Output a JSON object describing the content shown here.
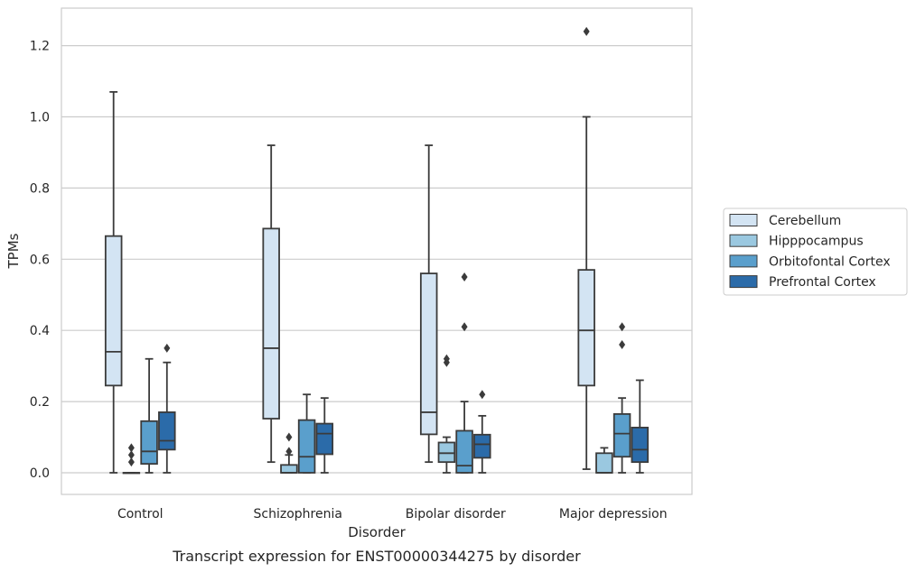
{
  "caption": "Transcript expression for ENST00000344275 by disorder",
  "chart_data": {
    "type": "boxplot",
    "xlabel": "Disorder",
    "ylabel": "TPMs",
    "ylim": [
      -0.06,
      1.3
    ],
    "yticks": [
      "0.0",
      "0.2",
      "0.4",
      "0.6",
      "0.8",
      "1.0",
      "1.2"
    ],
    "grid": "horizontal",
    "legend_position": "right",
    "categories": [
      "Control",
      "Schizophrenia",
      "Bipolar disorder",
      "Major depression"
    ],
    "series": [
      {
        "name": "Cerebellum",
        "color": "#d3e4f3",
        "boxes": [
          {
            "whislo": 0.0,
            "q1": 0.245,
            "med": 0.34,
            "q3": 0.665,
            "whishi": 1.07,
            "fliers": []
          },
          {
            "whislo": 0.03,
            "q1": 0.152,
            "med": 0.35,
            "q3": 0.686,
            "whishi": 0.92,
            "fliers": []
          },
          {
            "whislo": 0.03,
            "q1": 0.108,
            "med": 0.17,
            "q3": 0.56,
            "whishi": 0.92,
            "fliers": []
          },
          {
            "whislo": 0.01,
            "q1": 0.245,
            "med": 0.4,
            "q3": 0.57,
            "whishi": 1.0,
            "fliers": [
              1.24
            ]
          }
        ]
      },
      {
        "name": "Hipppocampus",
        "color": "#9ac8e0",
        "boxes": [
          {
            "whislo": 0.0,
            "q1": 0.0,
            "med": 0.0,
            "q3": 0.0,
            "whishi": 0.0,
            "fliers": [
              0.03,
              0.05,
              0.07
            ]
          },
          {
            "whislo": 0.0,
            "q1": 0.0,
            "med": 0.0,
            "q3": 0.022,
            "whishi": 0.05,
            "fliers": [
              0.06,
              0.1
            ]
          },
          {
            "whislo": 0.0,
            "q1": 0.03,
            "med": 0.055,
            "q3": 0.085,
            "whishi": 0.1,
            "fliers": [
              0.31,
              0.32
            ]
          },
          {
            "whislo": 0.0,
            "q1": 0.0,
            "med": 0.0,
            "q3": 0.055,
            "whishi": 0.07,
            "fliers": []
          }
        ]
      },
      {
        "name": "Orbitofontal Cortex",
        "color": "#5a9fcc",
        "boxes": [
          {
            "whislo": 0.0,
            "q1": 0.025,
            "med": 0.06,
            "q3": 0.145,
            "whishi": 0.32,
            "fliers": []
          },
          {
            "whislo": 0.0,
            "q1": 0.0,
            "med": 0.045,
            "q3": 0.148,
            "whishi": 0.22,
            "fliers": []
          },
          {
            "whislo": 0.0,
            "q1": 0.0,
            "med": 0.02,
            "q3": 0.118,
            "whishi": 0.2,
            "fliers": [
              0.41,
              0.55
            ]
          },
          {
            "whislo": 0.0,
            "q1": 0.045,
            "med": 0.11,
            "q3": 0.165,
            "whishi": 0.21,
            "fliers": [
              0.36,
              0.41
            ]
          }
        ]
      },
      {
        "name": "Prefrontal Cortex",
        "color": "#2b6ba9",
        "boxes": [
          {
            "whislo": 0.0,
            "q1": 0.065,
            "med": 0.09,
            "q3": 0.17,
            "whishi": 0.31,
            "fliers": [
              0.35
            ]
          },
          {
            "whislo": 0.0,
            "q1": 0.052,
            "med": 0.11,
            "q3": 0.138,
            "whishi": 0.21,
            "fliers": []
          },
          {
            "whislo": 0.0,
            "q1": 0.042,
            "med": 0.08,
            "q3": 0.107,
            "whishi": 0.16,
            "fliers": [
              0.22
            ]
          },
          {
            "whislo": 0.0,
            "q1": 0.03,
            "med": 0.065,
            "q3": 0.127,
            "whishi": 0.26,
            "fliers": []
          }
        ]
      }
    ]
  }
}
